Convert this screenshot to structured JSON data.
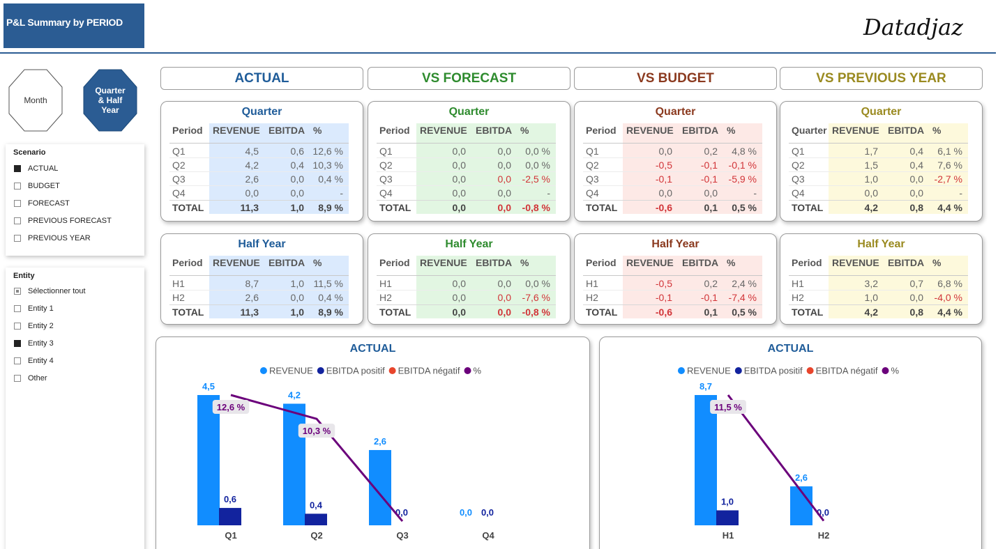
{
  "header": {
    "title": "P&L Summary by PERIOD",
    "logo": "Datadjaz"
  },
  "view_buttons": [
    {
      "label": "Month",
      "selected": false
    },
    {
      "label": "Quarter & Half Year",
      "selected": true
    }
  ],
  "slicers": [
    {
      "title": "Scenario",
      "items": [
        {
          "label": "ACTUAL",
          "state": "checked"
        },
        {
          "label": "BUDGET",
          "state": "unchecked"
        },
        {
          "label": "FORECAST",
          "state": "unchecked"
        },
        {
          "label": "PREVIOUS FORECAST",
          "state": "unchecked"
        },
        {
          "label": "PREVIOUS YEAR",
          "state": "unchecked"
        }
      ]
    },
    {
      "title": "Entity",
      "items": [
        {
          "label": "Sélectionner tout",
          "state": "partial"
        },
        {
          "label": "Entity 1",
          "state": "unchecked"
        },
        {
          "label": "Entity 2",
          "state": "unchecked"
        },
        {
          "label": "Entity 3",
          "state": "checked"
        },
        {
          "label": "Entity 4",
          "state": "unchecked"
        },
        {
          "label": "Other",
          "state": "unchecked"
        }
      ]
    }
  ],
  "sections": [
    {
      "title": "ACTUAL",
      "color": "#1f5c99",
      "band": "#dbeafd",
      "tables": [
        {
          "title": "Quarter",
          "columns": [
            "Period",
            "REVENUE",
            "EBITDA",
            "%"
          ],
          "rows": [
            [
              "Q1",
              "4,5",
              "0,6",
              "12,6 %"
            ],
            [
              "Q2",
              "4,2",
              "0,4",
              "10,3 %"
            ],
            [
              "Q3",
              "2,6",
              "0,0",
              "0,4 %"
            ],
            [
              "Q4",
              "0,0",
              "0,0",
              "-"
            ],
            [
              "TOTAL",
              "11,3",
              "1,0",
              "8,9 %"
            ]
          ]
        },
        {
          "title": "Half Year",
          "columns": [
            "Period",
            "REVENUE",
            "EBITDA",
            "%"
          ],
          "rows": [
            [
              "H1",
              "8,7",
              "1,0",
              "11,5 %"
            ],
            [
              "H2",
              "2,6",
              "0,0",
              "0,4 %"
            ],
            [
              "TOTAL",
              "11,3",
              "1,0",
              "8,9 %"
            ]
          ]
        }
      ]
    },
    {
      "title": "VS FORECAST",
      "color": "#2e8b2e",
      "band": "#e2f6e2",
      "tables": [
        {
          "title": "Quarter",
          "columns": [
            "Period",
            "REVENUE",
            "EBITDA",
            "%"
          ],
          "rows": [
            [
              "Q1",
              "0,0",
              "0,0",
              "0,0 %"
            ],
            [
              "Q2",
              "0,0",
              "0,0",
              "0,0 %"
            ],
            [
              "Q3",
              "0,0",
              {
                "text": "0,0",
                "color": "#d13438"
              },
              {
                "text": "-2,5 %",
                "color": "#d13438"
              }
            ],
            [
              "Q4",
              "0,0",
              "0,0",
              "-"
            ],
            [
              "TOTAL",
              "0,0",
              {
                "text": "0,0",
                "color": "#d13438"
              },
              {
                "text": "-0,8 %",
                "color": "#d13438"
              }
            ]
          ]
        },
        {
          "title": "Half Year",
          "columns": [
            "Period",
            "REVENUE",
            "EBITDA",
            "%"
          ],
          "rows": [
            [
              "H1",
              "0,0",
              "0,0",
              "0,0 %"
            ],
            [
              "H2",
              "0,0",
              {
                "text": "0,0",
                "color": "#d13438"
              },
              {
                "text": "-7,6 %",
                "color": "#d13438"
              }
            ],
            [
              "TOTAL",
              "0,0",
              {
                "text": "0,0",
                "color": "#d13438"
              },
              {
                "text": "-0,8 %",
                "color": "#d13438"
              }
            ]
          ]
        }
      ]
    },
    {
      "title": "VS BUDGET",
      "color": "#8b3a1f",
      "band": "#fde9e6",
      "tables": [
        {
          "title": "Quarter",
          "columns": [
            "Period",
            "REVENUE",
            "EBITDA",
            "%"
          ],
          "rows": [
            [
              "Q1",
              "0,0",
              "0,2",
              "4,8 %"
            ],
            [
              "Q2",
              {
                "text": "-0,5",
                "color": "#d13438"
              },
              {
                "text": "-0,1",
                "color": "#d13438"
              },
              {
                "text": "-0,1 %",
                "color": "#d13438"
              }
            ],
            [
              "Q3",
              {
                "text": "-0,1",
                "color": "#d13438"
              },
              {
                "text": "-0,1",
                "color": "#d13438"
              },
              {
                "text": "-5,9 %",
                "color": "#d13438"
              }
            ],
            [
              "Q4",
              "0,0",
              "0,0",
              "-"
            ],
            [
              "TOTAL",
              {
                "text": "-0,6",
                "color": "#d13438"
              },
              "0,1",
              "0,5 %"
            ]
          ]
        },
        {
          "title": "Half Year",
          "columns": [
            "Period",
            "REVENUE",
            "EBITDA",
            "%"
          ],
          "rows": [
            [
              "H1",
              {
                "text": "-0,5",
                "color": "#d13438"
              },
              "0,2",
              "2,4 %"
            ],
            [
              "H2",
              {
                "text": "-0,1",
                "color": "#d13438"
              },
              {
                "text": "-0,1",
                "color": "#d13438"
              },
              {
                "text": "-7,4 %",
                "color": "#d13438"
              }
            ],
            [
              "TOTAL",
              {
                "text": "-0,6",
                "color": "#d13438"
              },
              "0,1",
              "0,5 %"
            ]
          ]
        }
      ]
    },
    {
      "title": "VS PREVIOUS YEAR",
      "color": "#9a8a20",
      "band": "#fdf9dc",
      "tables": [
        {
          "title": "Quarter",
          "columns": [
            "Quarter",
            "REVENUE",
            "EBITDA",
            "%"
          ],
          "rows": [
            [
              "Q1",
              "1,7",
              "0,4",
              "6,1 %"
            ],
            [
              "Q2",
              "1,5",
              "0,4",
              "7,6 %"
            ],
            [
              "Q3",
              "1,0",
              "0,0",
              {
                "text": "-2,7 %",
                "color": "#d13438"
              }
            ],
            [
              "Q4",
              "0,0",
              "0,0",
              "-"
            ],
            [
              "TOTAL",
              "4,2",
              "0,8",
              "4,4 %"
            ]
          ]
        },
        {
          "title": "Half Year",
          "columns": [
            "Period",
            "REVENUE",
            "EBITDA",
            "%"
          ],
          "rows": [
            [
              "H1",
              "3,2",
              "0,7",
              "6,8 %"
            ],
            [
              "H2",
              "1,0",
              "0,0",
              {
                "text": "-4,0 %",
                "color": "#d13438"
              }
            ],
            [
              "TOTAL",
              "4,2",
              "0,8",
              "4,4 %"
            ]
          ]
        }
      ]
    }
  ],
  "charts": [
    {
      "type": "bar",
      "title": "ACTUAL",
      "categories": [
        "Q1",
        "Q2",
        "Q3",
        "Q4"
      ],
      "series": [
        {
          "name": "REVENUE",
          "color": "#118dff",
          "values": [
            4.5,
            4.2,
            2.6,
            0.0
          ],
          "value_labels": [
            "4,5",
            "4,2",
            "2,6",
            "0,0"
          ]
        },
        {
          "name": "EBITDA positif",
          "color": "#12239e",
          "values": [
            0.6,
            0.4,
            0.0,
            0.0
          ],
          "value_labels": [
            "0,6",
            "0,4",
            "0,0",
            "0,0"
          ]
        },
        {
          "name": "EBITDA négatif",
          "color": "#e8452c",
          "values": [
            null,
            null,
            null,
            null
          ]
        },
        {
          "name": "%",
          "color": "#6b007b",
          "type": "line",
          "values": [
            12.6,
            10.3,
            0.4,
            null
          ],
          "value_labels": [
            "12,6 %",
            "10,3 %",
            null,
            null
          ]
        }
      ]
    },
    {
      "type": "bar",
      "title": "ACTUAL",
      "categories": [
        "H1",
        "H2"
      ],
      "series": [
        {
          "name": "REVENUE",
          "color": "#118dff",
          "values": [
            8.7,
            2.6
          ],
          "value_labels": [
            "8,7",
            "2,6"
          ]
        },
        {
          "name": "EBITDA positif",
          "color": "#12239e",
          "values": [
            1.0,
            0.0
          ],
          "value_labels": [
            "1,0",
            "0,0"
          ]
        },
        {
          "name": "EBITDA négatif",
          "color": "#e8452c",
          "values": [
            null,
            null
          ]
        },
        {
          "name": "%",
          "color": "#6b007b",
          "type": "line",
          "values": [
            11.5,
            0.4
          ],
          "value_labels": [
            "11,5 %",
            null
          ]
        }
      ]
    }
  ]
}
